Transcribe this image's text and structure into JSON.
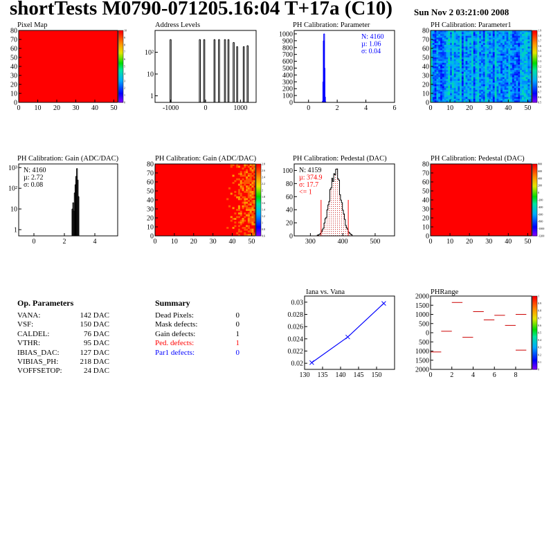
{
  "header": {
    "title": "shortTests M0790-071205.16:04 T+17a (C10)",
    "date": "Sun Nov  2 03:21:00 2008"
  },
  "colors": {
    "frame": "#000000",
    "red": "#ff0000",
    "blue": "#0000ff",
    "hist": "#000000"
  },
  "chart_data": [
    {
      "id": "pixel-map",
      "type": "heatmap",
      "title": "Pixel Map",
      "xlim": [
        0,
        52
      ],
      "ylim": [
        0,
        80
      ],
      "xticks": [
        0,
        10,
        20,
        30,
        40,
        50
      ],
      "yticks": [
        0,
        10,
        20,
        30,
        40,
        50,
        60,
        70,
        80
      ],
      "fill": "uniform-red",
      "fill_color": "#ff0000",
      "zticks": [
        "0",
        "1",
        "2",
        "3",
        "4",
        "5",
        "6",
        "7",
        "8",
        "9",
        "10"
      ]
    },
    {
      "id": "address-levels",
      "type": "bar",
      "title": "Address Levels",
      "log_y": true,
      "xlim": [
        -1450,
        1450
      ],
      "ylim": [
        0.5,
        1000
      ],
      "xticks": [
        -1000,
        0,
        1000
      ],
      "yticks": [
        1,
        10,
        100
      ],
      "ytick_labels": [
        "1",
        "10",
        "10²"
      ],
      "x": [
        -1020,
        -180,
        -55,
        240,
        370,
        540,
        640,
        790,
        890,
        1080,
        1190
      ],
      "values": [
        380,
        380,
        380,
        380,
        380,
        380,
        380,
        280,
        180,
        180,
        200
      ]
    },
    {
      "id": "ph-calib-param",
      "type": "bar",
      "title": "PH Calibration: Parameter",
      "xlim": [
        -1,
        6
      ],
      "ylim": [
        0,
        1050
      ],
      "xticks": [
        0,
        2,
        4,
        6
      ],
      "yticks": [
        0,
        100,
        200,
        300,
        400,
        500,
        600,
        700,
        800,
        900,
        1000
      ],
      "x": [
        0.97,
        1.0,
        1.03,
        1.06,
        1.09,
        1.12,
        1.15
      ],
      "values": [
        20,
        300,
        900,
        1000,
        500,
        80,
        10
      ],
      "stats": [
        "N: 4160",
        "µ: 1.06",
        "σ: 0.04"
      ],
      "stats_colors": [
        "#0000ff",
        "#0000ff",
        "#0000ff"
      ]
    },
    {
      "id": "ph-calib-param1",
      "type": "heatmap",
      "title": "PH Calibration: Parameter1",
      "xlim": [
        0,
        52
      ],
      "ylim": [
        0,
        80
      ],
      "xticks": [
        0,
        10,
        20,
        30,
        40,
        50
      ],
      "yticks": [
        0,
        10,
        20,
        30,
        40,
        50,
        60,
        70,
        80
      ],
      "fill": "mottled-blue",
      "zticks": [
        "0.5",
        "0.6",
        "0.7",
        "0.8",
        "0.9",
        "1.0",
        "1.1",
        "1.2",
        "1.3",
        "1.4",
        "1.5",
        "1.6",
        "1.7",
        "1.8",
        "1.9"
      ]
    },
    {
      "id": "ph-gain-hist",
      "type": "bar",
      "title": "PH Calibration: Gain (ADC/DAC)",
      "log_y": true,
      "xlim": [
        -1,
        5.5
      ],
      "ylim": [
        0.5,
        1500
      ],
      "xticks": [
        0,
        2,
        4
      ],
      "yticks": [
        1,
        10,
        100,
        1000
      ],
      "ytick_labels": [
        "1",
        "10",
        "10²",
        "10³"
      ],
      "x": [
        2.5,
        2.55,
        2.6,
        2.65,
        2.7,
        2.75,
        2.8,
        2.85,
        2.9
      ],
      "values": [
        10,
        20,
        8,
        60,
        150,
        380,
        900,
        250,
        40
      ],
      "stats": [
        "N: 4160",
        "µ: 2.72",
        "σ: 0.08"
      ],
      "stats_colors": [
        "#000000",
        "#000000",
        "#000000"
      ]
    },
    {
      "id": "ph-gain-map",
      "type": "heatmap",
      "title": "PH Calibration: Gain (ADC/DAC)",
      "xlim": [
        0,
        52
      ],
      "ylim": [
        0,
        80
      ],
      "xticks": [
        0,
        10,
        20,
        30,
        40,
        50
      ],
      "yticks": [
        0,
        10,
        20,
        30,
        40,
        50,
        60,
        70,
        80
      ],
      "fill": "red-mostly",
      "fill_color": "#ff0000",
      "zticks": [
        "0.6",
        "0.8",
        "1",
        "1.2",
        "1.4",
        "1.6",
        "1.8",
        "2",
        "2.2",
        "2.4",
        "2.6",
        "2.8"
      ]
    },
    {
      "id": "ph-pedestal-hist",
      "type": "bar",
      "title": "PH Calibration: Pedestal (DAC)",
      "xlim": [
        250,
        560
      ],
      "ylim": [
        0,
        110
      ],
      "xticks": [
        300,
        400,
        500
      ],
      "yticks": [
        0,
        20,
        40,
        60,
        80,
        100
      ],
      "mean": 374.9,
      "sigma": 17.7,
      "norm": 98,
      "cut_lines": [
        333,
        417
      ],
      "stats": [
        "N: 4159",
        "µ: 374.9",
        "σ: 17.7",
        "<= 1"
      ],
      "stats_colors": [
        "#000000",
        "#ff0000",
        "#ff0000",
        "#ff0000"
      ]
    },
    {
      "id": "ph-pedestal-map",
      "type": "heatmap",
      "title": "PH Calibration: Pedestal (DAC)",
      "xlim": [
        0,
        52
      ],
      "ylim": [
        0,
        80
      ],
      "xticks": [
        0,
        10,
        20,
        30,
        40,
        50
      ],
      "yticks": [
        0,
        10,
        20,
        30,
        40,
        50,
        60,
        70,
        80
      ],
      "fill": "uniform-red",
      "fill_color": "#ff0000",
      "zticks": [
        "-1200",
        "-1000",
        "-800",
        "-600",
        "-400",
        "-200",
        "0",
        "200",
        "400",
        "600",
        "800"
      ]
    },
    {
      "id": "iana-vana",
      "type": "line",
      "title": "Iana vs. Vana",
      "xlim": [
        130,
        155
      ],
      "ylim": [
        0.019,
        0.031
      ],
      "xticks": [
        130,
        135,
        140,
        145,
        150
      ],
      "yticks": [
        0.02,
        0.022,
        0.024,
        0.026,
        0.028,
        0.03
      ],
      "series": [
        {
          "x": [
            132,
            142,
            152
          ],
          "values": [
            0.0201,
            0.0243,
            0.0298
          ]
        }
      ]
    },
    {
      "id": "ph-range",
      "type": "scatter",
      "title": "PHRange",
      "xlim": [
        0,
        9.5
      ],
      "ylim": [
        -2000,
        2000
      ],
      "xticks": [
        0,
        2,
        4,
        6,
        8
      ],
      "yticks": [
        -2000,
        -1500,
        -1000,
        -500,
        0,
        500,
        1000,
        1500,
        2000
      ],
      "ytick_labels": [
        "2000",
        "1500",
        "1000",
        "500",
        "0",
        "500",
        "1000",
        "1500",
        "2000"
      ],
      "segments": [
        [
          0,
          1,
          -1050
        ],
        [
          1,
          2,
          80
        ],
        [
          2,
          3,
          1650
        ],
        [
          3,
          4,
          -250
        ],
        [
          4,
          5,
          1150
        ],
        [
          5,
          6,
          700
        ],
        [
          6,
          7,
          950
        ],
        [
          7,
          8,
          400
        ],
        [
          8,
          9,
          1000
        ],
        [
          8,
          9,
          -950
        ]
      ],
      "zticks": [
        "0",
        "0.1",
        "0.2",
        "0.3",
        "0.4",
        "0.5",
        "0.6",
        "0.7",
        "0.8",
        "0.9",
        "1"
      ]
    }
  ],
  "op_params": {
    "title": "Op. Parameters",
    "rows": [
      {
        "name": "VANA:",
        "value": "142 DAC"
      },
      {
        "name": "VSF:",
        "value": "150 DAC"
      },
      {
        "name": "CALDEL:",
        "value": "76 DAC"
      },
      {
        "name": "VTHR:",
        "value": "95 DAC"
      },
      {
        "name": "IBIAS_DAC:",
        "value": "127 DAC"
      },
      {
        "name": "VIBIAS_PH:",
        "value": "218 DAC"
      },
      {
        "name": "VOFFSETOP:",
        "value": "24 DAC"
      }
    ]
  },
  "summary": {
    "title": "Summary",
    "rows": [
      {
        "name": "Dead Pixels:",
        "value": "0",
        "color": "#000000"
      },
      {
        "name": "Mask defects:",
        "value": "0",
        "color": "#000000"
      },
      {
        "name": "Gain defects:",
        "value": "1",
        "color": "#000000"
      },
      {
        "name": "Ped. defects:",
        "value": "1",
        "color": "#ff0000"
      },
      {
        "name": "Par1 defects:",
        "value": "0",
        "color": "#0000ff"
      }
    ]
  }
}
